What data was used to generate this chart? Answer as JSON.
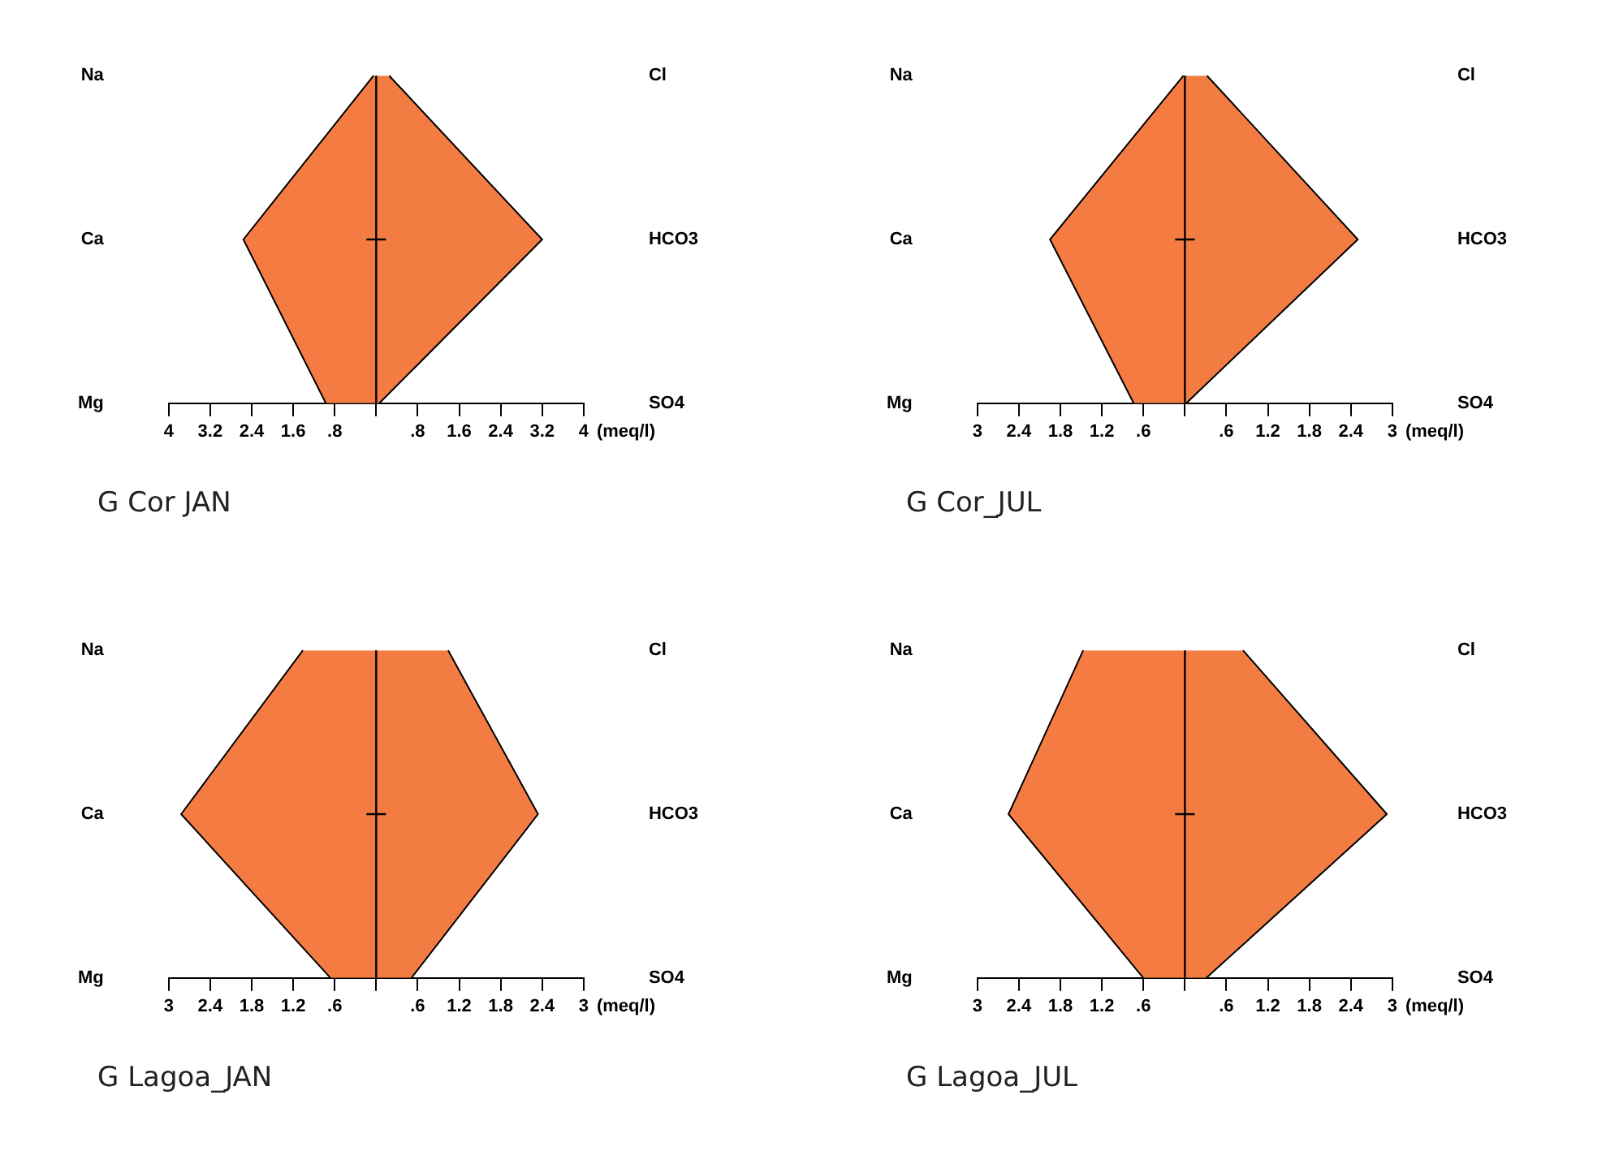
{
  "chart_data": [
    {
      "type": "area",
      "title": "G Cor  JAN",
      "orientation": "horizontal",
      "categories": [
        "Na",
        "Ca",
        "Mg"
      ],
      "y2_categories": [
        "Cl",
        "HCO3",
        "SO4"
      ],
      "xlabel": "(meq/l)",
      "marker": "none",
      "grid": false,
      "legend": false,
      "xlim": [
        -4,
        4
      ],
      "xticks": [
        {
          "value": -4,
          "label": "4"
        },
        {
          "value": -3.2,
          "label": "3.2"
        },
        {
          "value": -2.4,
          "label": "2.4"
        },
        {
          "value": -1.6,
          "label": "1.6"
        },
        {
          "value": -0.8,
          "label": ".8"
        },
        {
          "value": 0,
          "label": null
        },
        {
          "value": 0.8,
          "label": ".8"
        },
        1.6,
        2.4,
        3.2,
        4
      ],
      "ref_lines": [
        {
          "axis": "x",
          "value": 0,
          "color": "#000000"
        }
      ],
      "series": [
        {
          "color": "#f47c43",
          "values": [
            -0.05,
            -2.56,
            -0.97
          ]
        },
        {
          "color": "#f37c43",
          "values": [
            0.25,
            3.2,
            0.06
          ]
        }
      ]
    },
    {
      "type": "area",
      "title": "G Cor_JUL",
      "orientation": "horizontal",
      "categories": [
        "Na",
        "Ca",
        "Mg"
      ],
      "y2_categories": [
        "Cl",
        "HCO3",
        "SO4"
      ],
      "xlabel": "(meq/l)",
      "marker": "none",
      "grid": false,
      "legend": false,
      "xlim": [
        -3,
        3
      ],
      "xticks": [
        {
          "value": -3,
          "label": "3"
        },
        {
          "value": -2.4,
          "label": "2.4"
        },
        {
          "value": -1.8,
          "label": "1.8"
        },
        {
          "value": -1.2,
          "label": "1.2"
        },
        {
          "value": -0.6,
          "label": ".6"
        },
        {
          "value": 0,
          "label": null
        },
        {
          "value": 0.6,
          "label": ".6"
        },
        1.2,
        1.8,
        2.4,
        3
      ],
      "ref_lines": [
        {
          "axis": "x",
          "value": 0,
          "color": "#000000"
        }
      ],
      "series": [
        {
          "color": "#f47c43",
          "values": [
            -0.02,
            -1.95,
            -0.74
          ]
        },
        {
          "color": "#f37c43",
          "values": [
            0.32,
            2.5,
            0.02
          ]
        }
      ]
    },
    {
      "type": "area",
      "title": "G Lagoa_JAN",
      "orientation": "horizontal",
      "categories": [
        "Na",
        "Ca",
        "Mg"
      ],
      "y2_categories": [
        "Cl",
        "HCO3",
        "SO4"
      ],
      "xlabel": "(meq/l)",
      "marker": "none",
      "grid": false,
      "legend": false,
      "xlim": [
        -3,
        3
      ],
      "xticks": [
        {
          "value": -3,
          "label": "3"
        },
        {
          "value": -2.4,
          "label": "2.4"
        },
        {
          "value": -1.8,
          "label": "1.8"
        },
        {
          "value": -1.2,
          "label": "1.2"
        },
        {
          "value": -0.6,
          "label": ".6"
        },
        {
          "value": 0,
          "label": null
        },
        {
          "value": 0.6,
          "label": ".6"
        },
        1.2,
        1.8,
        2.4,
        3
      ],
      "ref_lines": [
        {
          "axis": "x",
          "value": 0,
          "color": "#000000"
        }
      ],
      "series": [
        {
          "color": "#f47c43",
          "values": [
            -1.06,
            -2.82,
            -0.66
          ]
        },
        {
          "color": "#f37c43",
          "values": [
            1.04,
            2.34,
            0.51
          ]
        }
      ]
    },
    {
      "type": "area",
      "title": "G Lagoa_JUL",
      "orientation": "horizontal",
      "categories": [
        "Na",
        "Ca",
        "Mg"
      ],
      "y2_categories": [
        "Cl",
        "HCO3",
        "SO4"
      ],
      "xlabel": "(meq/l)",
      "marker": "none",
      "grid": false,
      "legend": false,
      "xlim": [
        -3,
        3
      ],
      "xticks": [
        {
          "value": -3,
          "label": "3"
        },
        {
          "value": -2.4,
          "label": "2.4"
        },
        {
          "value": -1.8,
          "label": "1.8"
        },
        {
          "value": -1.2,
          "label": "1.2"
        },
        {
          "value": -0.6,
          "label": ".6"
        },
        {
          "value": 0,
          "label": null
        },
        {
          "value": 0.6,
          "label": ".6"
        },
        1.2,
        1.8,
        2.4,
        3
      ],
      "ref_lines": [
        {
          "axis": "x",
          "value": 0,
          "color": "#000000"
        }
      ],
      "series": [
        {
          "color": "#f47c43",
          "values": [
            -1.47,
            -2.55,
            -0.6
          ]
        },
        {
          "color": "#f37c43",
          "values": [
            0.84,
            2.92,
            0.31
          ]
        }
      ]
    }
  ]
}
